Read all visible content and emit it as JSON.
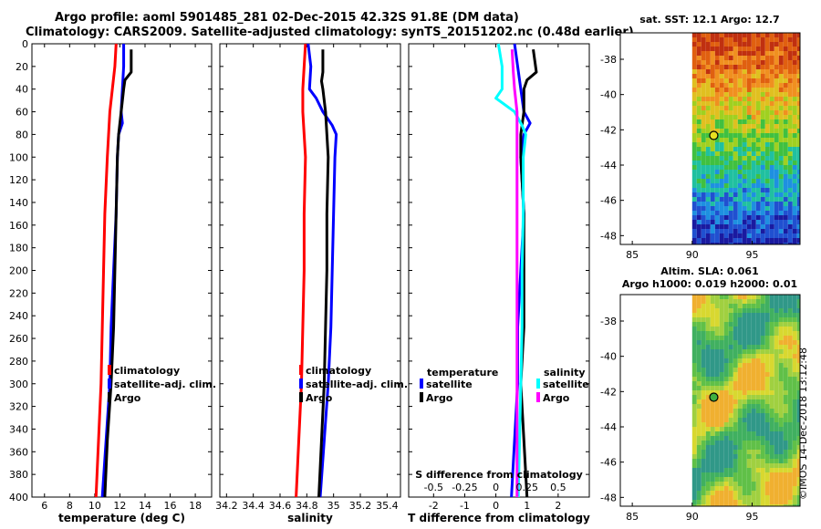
{
  "figure": {
    "title_line1": "Argo profile: aoml 5901485_281 02-Dec-2015 42.32S 91.8E (DM data)",
    "title_line2": "Climatology: CARS2009. Satellite-adjusted climatology: synTS_20151202.nc (0.48d earlier)",
    "credit": "©IMOS 14-Dec-2018 13:12:48"
  },
  "colors": {
    "climatology": "#ff0000",
    "satellite": "#0000ff",
    "argo": "#000000",
    "sat_diff_s": "#00ffff",
    "argo_diff_s": "#ff00ff"
  },
  "chart_data": [
    {
      "type": "line",
      "id": "temperature",
      "xlabel": "temperature (deg C)",
      "xlim": [
        5,
        19.3
      ],
      "ylim": [
        400,
        0
      ],
      "xticks": [
        6,
        8,
        10,
        12,
        14,
        16,
        18
      ],
      "yticks": [
        0,
        20,
        40,
        60,
        80,
        100,
        120,
        140,
        160,
        180,
        200,
        220,
        240,
        260,
        280,
        300,
        320,
        340,
        360,
        380,
        400
      ],
      "legend": [
        "climatology",
        "satellite-adj. clim.",
        "Argo"
      ],
      "series": [
        {
          "name": "climatology",
          "color": "#ff0000",
          "depth": [
            0,
            20,
            40,
            60,
            80,
            100,
            150,
            200,
            250,
            300,
            350,
            400
          ],
          "values": [
            11.7,
            11.6,
            11.4,
            11.2,
            11.1,
            11.0,
            10.8,
            10.7,
            10.6,
            10.5,
            10.3,
            10.1
          ]
        },
        {
          "name": "satellite-adj. clim.",
          "color": "#0000ff",
          "depth": [
            0,
            20,
            40,
            60,
            70,
            80,
            100,
            150,
            200,
            250,
            300,
            350,
            400
          ],
          "values": [
            12.3,
            12.3,
            12.2,
            12.1,
            12.2,
            11.9,
            11.8,
            11.7,
            11.5,
            11.3,
            11.2,
            10.9,
            10.6
          ]
        },
        {
          "name": "Argo",
          "color": "#000000",
          "depth": [
            5,
            25,
            32,
            40,
            60,
            80,
            100,
            150,
            200,
            250,
            300,
            350,
            400
          ],
          "values": [
            12.9,
            12.9,
            12.4,
            12.3,
            12.1,
            11.9,
            11.8,
            11.7,
            11.6,
            11.5,
            11.3,
            11.0,
            10.8
          ]
        }
      ]
    },
    {
      "type": "line",
      "id": "salinity",
      "xlabel": "salinity",
      "xlim": [
        34.15,
        35.5
      ],
      "ylim": [
        400,
        0
      ],
      "xticks": [
        34.2,
        34.4,
        34.6,
        34.8,
        35,
        35.2,
        35.4
      ],
      "xticklabels": [
        "34.2",
        "34.4",
        "34.6",
        "34.8",
        "35",
        "35.2",
        "35.4"
      ],
      "legend": [
        "climatology",
        "satellite-adj. clim.",
        "Argo"
      ],
      "series": [
        {
          "name": "climatology",
          "color": "#ff0000",
          "depth": [
            0,
            20,
            40,
            60,
            80,
            100,
            150,
            200,
            250,
            300,
            350,
            400
          ],
          "values": [
            34.79,
            34.78,
            34.77,
            34.77,
            34.78,
            34.79,
            34.78,
            34.78,
            34.77,
            34.76,
            34.74,
            34.72
          ]
        },
        {
          "name": "satellite-adj. clim.",
          "color": "#0000ff",
          "depth": [
            0,
            10,
            20,
            40,
            48,
            60,
            72,
            80,
            100,
            150,
            200,
            250,
            300,
            350,
            400
          ],
          "values": [
            34.81,
            34.82,
            34.83,
            34.82,
            34.87,
            34.92,
            34.99,
            35.02,
            35.01,
            35.0,
            34.99,
            34.98,
            34.96,
            34.93,
            34.9
          ]
        },
        {
          "name": "Argo",
          "color": "#000000",
          "depth": [
            5,
            25,
            33,
            40,
            60,
            80,
            100,
            150,
            200,
            250,
            300,
            350,
            400
          ],
          "values": [
            34.92,
            34.92,
            34.91,
            34.92,
            34.94,
            34.95,
            34.96,
            34.95,
            34.95,
            34.94,
            34.93,
            34.91,
            34.89
          ]
        }
      ]
    },
    {
      "type": "line",
      "id": "differences",
      "xlabel": "T difference from climatology",
      "xlabel_top": "S difference from climatology",
      "xlim": [
        -2.8,
        3.0
      ],
      "xticks": [
        -2,
        -1,
        0,
        1,
        2
      ],
      "xtick_labels": [
        "-2",
        "-1",
        "0",
        "1",
        "2"
      ],
      "top_tick_labels": [
        "-0.5",
        "-0.25",
        "0",
        "0.25",
        "0.5"
      ],
      "ylim": [
        400,
        0
      ],
      "legend_temperature": {
        "title": "temperature",
        "entries": [
          "satellite",
          "Argo"
        ]
      },
      "legend_salinity": {
        "title": "salinity",
        "entries": [
          "satellite",
          "Argo"
        ]
      },
      "series": [
        {
          "name": "T satellite",
          "color": "#0000ff",
          "depth": [
            0,
            20,
            40,
            60,
            70,
            80,
            100,
            150,
            200,
            250,
            300,
            350,
            400
          ],
          "values": [
            0.6,
            0.7,
            0.8,
            0.9,
            1.1,
            0.9,
            0.8,
            0.9,
            0.8,
            0.7,
            0.7,
            0.6,
            0.5
          ]
        },
        {
          "name": "T Argo",
          "color": "#000000",
          "depth": [
            5,
            25,
            32,
            40,
            60,
            80,
            100,
            150,
            200,
            250,
            300,
            350,
            400
          ],
          "values": [
            1.2,
            1.3,
            1.0,
            0.9,
            0.9,
            0.8,
            0.8,
            0.9,
            0.9,
            0.9,
            0.8,
            0.9,
            1.0
          ]
        },
        {
          "name": "S satellite",
          "color": "#00ffff",
          "depth": [
            0,
            20,
            40,
            48,
            60,
            72,
            80,
            100,
            150,
            200,
            250,
            300,
            350,
            400
          ],
          "values": [
            0.02,
            0.05,
            0.05,
            0.0,
            0.15,
            0.21,
            0.24,
            0.22,
            0.22,
            0.21,
            0.21,
            0.2,
            0.19,
            0.18
          ]
        },
        {
          "name": "S Argo",
          "color": "#ff00ff",
          "depth": [
            5,
            25,
            40,
            60,
            80,
            100,
            150,
            200,
            250,
            300,
            350,
            400
          ],
          "values": [
            0.13,
            0.14,
            0.15,
            0.17,
            0.17,
            0.17,
            0.17,
            0.17,
            0.17,
            0.17,
            0.17,
            0.17
          ]
        }
      ]
    },
    {
      "type": "heatmap",
      "id": "sst_map",
      "title": "sat. SST: 12.1 Argo: 12.7",
      "xlim": [
        84,
        99
      ],
      "ylim": [
        -48.5,
        -36.5
      ],
      "xticks": [
        85,
        90,
        95
      ],
      "yticks": [
        -38,
        -40,
        -42,
        -44,
        -46,
        -48
      ],
      "data_extent_lon": [
        90,
        99
      ],
      "argo_position": {
        "lon": 91.8,
        "lat": -42.32
      }
    },
    {
      "type": "heatmap",
      "id": "sla_map",
      "title_line1": "Altim. SLA: 0.061",
      "title_line2": "Argo h1000: 0.019 h2000: 0.01",
      "xlim": [
        84,
        99
      ],
      "ylim": [
        -48.5,
        -36.5
      ],
      "xticks": [
        85,
        90,
        95
      ],
      "yticks": [
        -38,
        -40,
        -42,
        -44,
        -46,
        -48
      ],
      "data_extent_lon": [
        90,
        99
      ],
      "argo_position": {
        "lon": 91.8,
        "lat": -42.32
      }
    }
  ]
}
